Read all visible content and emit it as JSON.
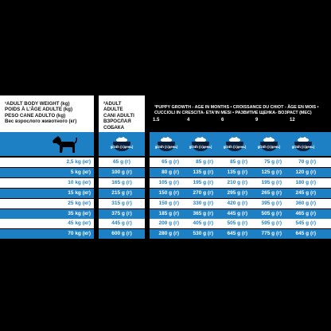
{
  "header": {
    "weight_label": "¹ADULT BODY WEIGHT (kg)\nPOIDS À L'ÂGE ADULTE (kg)\nPESO CANE ADULTO (kg)\nВес взрослого животного (кг)",
    "adult_label": "²ADULT\nADULTE\nCANI ADULTI\nВЗРОСЛАЯ СОБАКА",
    "puppy_label": "³PUPPY GROWTH - AGE IN MONTHS • CROISSANCE DU CHIOT - ÂGE EN MOIS •\nCUCCIOLI IN CRESCITA- ETA'IN MESI • РАЗВИТИЕ ЩЕНКА- ВОЗРАСТ (МЕС)",
    "ages": [
      "1.5",
      "4",
      "6",
      "9",
      "12"
    ]
  },
  "bowl_label": "g/24h\n(г/день)",
  "colors": {
    "blue": "#1d7fc4",
    "white": "#ffffff",
    "black": "#000000"
  },
  "icons": [
    "dog-icon",
    "food-bowl-icon"
  ],
  "rows": [
    {
      "weight": "2,5 kg (кг)",
      "adult": "65 g (г)",
      "pups": [
        "65 g (г)",
        "85 g (г)",
        "85 g (г)",
        "75 g (г)",
        "70 g (г)"
      ]
    },
    {
      "weight": "5 kg (кг)",
      "adult": "100 g (г)",
      "pups": [
        "80 g (г)",
        "135 g (г)",
        "135 g (г)",
        "125 g (г)",
        "120 g (г)"
      ]
    },
    {
      "weight": "10 kg (кг)",
      "adult": "165 g (г)",
      "pups": [
        "105 g (г)",
        "195 g (г)",
        "210 g (г)",
        "195 g (г)",
        "180 g (г)"
      ]
    },
    {
      "weight": "15 kg (кг)",
      "adult": "215 g (г)",
      "pups": [
        "150 g (г)",
        "270 g (г)",
        "295 g (г)",
        "265 g (г)",
        "245 g (г)"
      ]
    },
    {
      "weight": "25 kg (кг)",
      "adult": "315 g (г)",
      "pups": [
        "150 g (г)",
        "330 g (г)",
        "420 g (г)",
        "395 g (г)",
        "360 g (г)"
      ]
    },
    {
      "weight": "35 kg (кг)",
      "adult": "375 g (г)",
      "pups": [
        "185 g (г)",
        "365 g (г)",
        "445 g (г)",
        "505 g (г)",
        "465 g (г)"
      ]
    },
    {
      "weight": "45 kg (кг)",
      "adult": "445 g (г)",
      "pups": [
        "200 g (г)",
        "405 g (г)",
        "505 g (г)",
        "595 g (г)",
        "545 g (г)"
      ]
    },
    {
      "weight": "70 kg (кг)",
      "adult": "600 g (г)",
      "pups": [
        "280 g (г)",
        "530 g (г)",
        "645 g (г)",
        "775 g (г)",
        "645 g (г)"
      ]
    }
  ]
}
